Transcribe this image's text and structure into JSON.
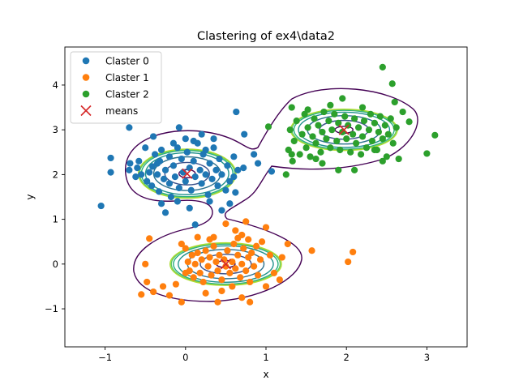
{
  "chart_data": {
    "type": "scatter",
    "title": "Clastering of ex4\\data2",
    "xlabel": "x",
    "ylabel": "y",
    "xlim": [
      -1.5,
      3.5
    ],
    "ylim": [
      -1.85,
      4.85
    ],
    "xticks": [
      -1,
      0,
      1,
      2,
      3
    ],
    "yticks": [
      -1,
      0,
      1,
      2,
      3,
      4
    ],
    "grid": false,
    "legend_position": "top-left",
    "series": [
      {
        "name": "Claster 0",
        "color": "#1f77b4",
        "points": [
          [
            -1.05,
            1.3
          ],
          [
            -0.93,
            2.37
          ],
          [
            -0.93,
            2.05
          ],
          [
            -0.7,
            2.1
          ],
          [
            -0.69,
            2.25
          ],
          [
            -0.6,
            2.15
          ],
          [
            -0.55,
            2.0
          ],
          [
            -0.48,
            1.85
          ],
          [
            -0.45,
            2.05
          ],
          [
            -0.42,
            1.75
          ],
          [
            -0.41,
            2.18
          ],
          [
            -0.38,
            2.45
          ],
          [
            -0.35,
            2.0
          ],
          [
            -0.33,
            1.62
          ],
          [
            -0.32,
            2.3
          ],
          [
            -0.3,
            2.55
          ],
          [
            -0.27,
            1.9
          ],
          [
            -0.25,
            2.1
          ],
          [
            -0.2,
            1.8
          ],
          [
            -0.2,
            2.4
          ],
          [
            -0.18,
            1.5
          ],
          [
            -0.15,
            2.2
          ],
          [
            -0.13,
            1.95
          ],
          [
            -0.1,
            2.6
          ],
          [
            -0.08,
            1.7
          ],
          [
            -0.05,
            2.35
          ],
          [
            -0.03,
            2.05
          ],
          [
            0.0,
            1.85
          ],
          [
            0.02,
            2.5
          ],
          [
            0.05,
            2.15
          ],
          [
            0.07,
            1.65
          ],
          [
            0.1,
            2.3
          ],
          [
            0.12,
            1.95
          ],
          [
            0.15,
            2.7
          ],
          [
            0.18,
            2.1
          ],
          [
            0.2,
            1.8
          ],
          [
            0.22,
            2.45
          ],
          [
            0.25,
            2.0
          ],
          [
            0.28,
            1.55
          ],
          [
            0.3,
            2.25
          ],
          [
            0.33,
            1.9
          ],
          [
            0.35,
            2.6
          ],
          [
            0.38,
            2.1
          ],
          [
            0.4,
            1.75
          ],
          [
            0.42,
            2.35
          ],
          [
            0.45,
            2.0
          ],
          [
            0.5,
            1.65
          ],
          [
            0.52,
            2.2
          ],
          [
            0.55,
            1.85
          ],
          [
            0.6,
            2.4
          ],
          [
            0.62,
            1.6
          ],
          [
            0.65,
            2.1
          ],
          [
            -0.3,
            1.35
          ],
          [
            -0.25,
            1.15
          ],
          [
            -0.1,
            1.4
          ],
          [
            0.05,
            1.25
          ],
          [
            0.12,
            0.88
          ],
          [
            0.3,
            1.4
          ],
          [
            0.45,
            1.2
          ],
          [
            0.55,
            1.35
          ],
          [
            -0.7,
            3.05
          ],
          [
            -0.4,
            2.85
          ],
          [
            0.0,
            2.8
          ],
          [
            0.2,
            2.9
          ],
          [
            0.1,
            2.75
          ],
          [
            -0.15,
            2.7
          ],
          [
            -0.5,
            2.6
          ],
          [
            0.63,
            3.4
          ],
          [
            0.73,
            2.9
          ],
          [
            0.72,
            2.15
          ],
          [
            0.85,
            2.45
          ],
          [
            0.9,
            2.25
          ],
          [
            1.07,
            2.07
          ],
          [
            -0.08,
            3.05
          ],
          [
            0.35,
            2.8
          ],
          [
            -0.58,
            2.3
          ],
          [
            -0.62,
            1.95
          ],
          [
            0.6,
            1.95
          ],
          [
            0.25,
            2.55
          ],
          [
            -0.35,
            2.25
          ]
        ]
      },
      {
        "name": "Claster 1",
        "color": "#ff7f0e",
        "points": [
          [
            -0.55,
            -0.68
          ],
          [
            -0.5,
            0.0
          ],
          [
            -0.48,
            -0.4
          ],
          [
            -0.45,
            0.57
          ],
          [
            -0.4,
            -0.62
          ],
          [
            -0.2,
            -0.7
          ],
          [
            -0.12,
            -0.45
          ],
          [
            -0.05,
            0.45
          ],
          [
            -0.05,
            -0.85
          ],
          [
            0.0,
            0.35
          ],
          [
            0.03,
            0.05
          ],
          [
            0.05,
            -0.15
          ],
          [
            0.08,
            0.2
          ],
          [
            0.1,
            -0.3
          ],
          [
            0.12,
            0.0
          ],
          [
            0.15,
            0.25
          ],
          [
            0.18,
            -0.2
          ],
          [
            0.2,
            0.1
          ],
          [
            0.22,
            -0.4
          ],
          [
            0.25,
            0.3
          ],
          [
            0.28,
            -0.05
          ],
          [
            0.3,
            0.15
          ],
          [
            0.32,
            -0.25
          ],
          [
            0.35,
            0.4
          ],
          [
            0.38,
            0.05
          ],
          [
            0.4,
            -0.15
          ],
          [
            0.42,
            0.2
          ],
          [
            0.45,
            -0.35
          ],
          [
            0.48,
            0.1
          ],
          [
            0.5,
            -0.05
          ],
          [
            0.52,
            0.3
          ],
          [
            0.55,
            -0.2
          ],
          [
            0.58,
            0.05
          ],
          [
            0.6,
            0.45
          ],
          [
            0.62,
            -0.1
          ],
          [
            0.65,
            0.2
          ],
          [
            0.68,
            -0.3
          ],
          [
            0.7,
            0.0
          ],
          [
            0.72,
            0.35
          ],
          [
            0.75,
            -0.15
          ],
          [
            0.78,
            0.15
          ],
          [
            0.8,
            -0.4
          ],
          [
            0.82,
            0.25
          ],
          [
            0.85,
            -0.05
          ],
          [
            0.88,
            0.4
          ],
          [
            0.9,
            -0.25
          ],
          [
            0.93,
            0.1
          ],
          [
            0.95,
            0.5
          ],
          [
            1.0,
            -0.5
          ],
          [
            1.05,
            0.2
          ],
          [
            1.1,
            -0.2
          ],
          [
            1.2,
            0.15
          ],
          [
            1.27,
            0.45
          ],
          [
            1.17,
            -0.35
          ],
          [
            1.57,
            0.3
          ],
          [
            2.02,
            0.05
          ],
          [
            2.08,
            0.27
          ],
          [
            0.75,
            0.95
          ],
          [
            0.5,
            0.9
          ],
          [
            0.7,
            0.65
          ],
          [
            0.35,
            0.6
          ],
          [
            0.62,
            0.75
          ],
          [
            0.78,
            0.55
          ],
          [
            0.45,
            -0.6
          ],
          [
            0.7,
            -0.75
          ],
          [
            0.8,
            -0.85
          ],
          [
            0.4,
            -0.85
          ],
          [
            1.0,
            0.82
          ],
          [
            0.25,
            -0.65
          ],
          [
            -0.28,
            -0.5
          ],
          [
            0.15,
            0.6
          ],
          [
            0.58,
            -0.5
          ],
          [
            0.3,
            0.55
          ],
          [
            0.65,
            0.58
          ],
          [
            0.0,
            -0.2
          ]
        ]
      },
      {
        "name": "Claster 2",
        "color": "#2ca02c",
        "points": [
          [
            1.25,
            2.0
          ],
          [
            1.28,
            2.55
          ],
          [
            1.3,
            3.0
          ],
          [
            1.33,
            2.3
          ],
          [
            1.35,
            2.75
          ],
          [
            1.38,
            3.2
          ],
          [
            1.42,
            2.45
          ],
          [
            1.45,
            2.9
          ],
          [
            1.48,
            3.35
          ],
          [
            1.5,
            2.6
          ],
          [
            1.52,
            3.05
          ],
          [
            1.55,
            2.4
          ],
          [
            1.58,
            2.85
          ],
          [
            1.6,
            3.25
          ],
          [
            1.62,
            2.7
          ],
          [
            1.65,
            3.1
          ],
          [
            1.68,
            2.5
          ],
          [
            1.7,
            2.95
          ],
          [
            1.72,
            3.4
          ],
          [
            1.75,
            2.8
          ],
          [
            1.78,
            3.2
          ],
          [
            1.8,
            2.6
          ],
          [
            1.82,
            3.0
          ],
          [
            1.85,
            3.35
          ],
          [
            1.88,
            2.75
          ],
          [
            1.9,
            3.15
          ],
          [
            1.92,
            2.55
          ],
          [
            1.95,
            2.95
          ],
          [
            1.98,
            3.3
          ],
          [
            2.0,
            2.8
          ],
          [
            2.02,
            3.1
          ],
          [
            2.05,
            2.5
          ],
          [
            2.08,
            2.9
          ],
          [
            2.1,
            3.25
          ],
          [
            2.12,
            2.7
          ],
          [
            2.15,
            3.05
          ],
          [
            2.18,
            2.45
          ],
          [
            2.2,
            2.85
          ],
          [
            2.22,
            3.2
          ],
          [
            2.25,
            2.6
          ],
          [
            2.28,
            3.0
          ],
          [
            2.3,
            3.35
          ],
          [
            2.32,
            2.75
          ],
          [
            2.35,
            3.15
          ],
          [
            2.38,
            2.55
          ],
          [
            2.4,
            2.95
          ],
          [
            2.42,
            3.3
          ],
          [
            2.45,
            2.8
          ],
          [
            2.48,
            3.1
          ],
          [
            2.5,
            2.4
          ],
          [
            2.52,
            2.9
          ],
          [
            2.55,
            3.25
          ],
          [
            2.58,
            2.7
          ],
          [
            2.62,
            3.05
          ],
          [
            2.65,
            2.35
          ],
          [
            2.7,
            3.4
          ],
          [
            2.78,
            3.18
          ],
          [
            3.0,
            2.47
          ],
          [
            3.1,
            2.88
          ],
          [
            2.45,
            4.4
          ],
          [
            2.57,
            4.03
          ],
          [
            1.03,
            3.07
          ],
          [
            1.32,
            3.5
          ],
          [
            1.8,
            3.55
          ],
          [
            1.9,
            2.1
          ],
          [
            2.1,
            2.1
          ],
          [
            1.62,
            2.35
          ],
          [
            1.32,
            2.45
          ],
          [
            2.45,
            2.3
          ],
          [
            2.6,
            3.62
          ],
          [
            2.2,
            3.5
          ],
          [
            1.95,
            3.7
          ],
          [
            1.52,
            3.45
          ],
          [
            2.35,
            2.55
          ],
          [
            1.7,
            2.25
          ]
        ]
      }
    ],
    "means": {
      "name": "means",
      "color": "#d62728",
      "points": [
        [
          0.02,
          2.02
        ],
        [
          0.5,
          0.0
        ],
        [
          1.97,
          3.0
        ]
      ]
    }
  }
}
